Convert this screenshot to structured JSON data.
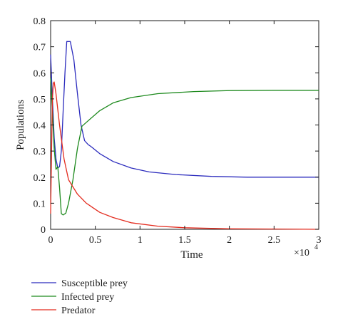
{
  "chart_data": {
    "type": "line",
    "title": "",
    "xlabel": "Time",
    "ylabel": "Populations",
    "x_multiplier_label": "×10",
    "x_multiplier_exponent": "4",
    "xlim": [
      0,
      3
    ],
    "ylim": [
      0,
      0.8
    ],
    "x_ticks": [
      0,
      0.5,
      1,
      1.5,
      2,
      2.5,
      3
    ],
    "x_tick_labels": [
      "0",
      "0.5",
      "1",
      "1.5",
      "2",
      "2.5",
      "3"
    ],
    "y_ticks": [
      0,
      0.1,
      0.2,
      0.3,
      0.4,
      0.5,
      0.6,
      0.7,
      0.8
    ],
    "y_tick_labels": [
      "0",
      "0.1",
      "0.2",
      "0.3",
      "0.4",
      "0.5",
      "0.6",
      "0.7",
      "0.8"
    ],
    "grid": false,
    "legend_placement": "below",
    "series": [
      {
        "name": "Susceptible prey",
        "color": "#2b2bbd",
        "points": [
          [
            0,
            0.67
          ],
          [
            0.02,
            0.5
          ],
          [
            0.04,
            0.35
          ],
          [
            0.06,
            0.27
          ],
          [
            0.08,
            0.235
          ],
          [
            0.1,
            0.24
          ],
          [
            0.12,
            0.3
          ],
          [
            0.14,
            0.45
          ],
          [
            0.16,
            0.6
          ],
          [
            0.18,
            0.72
          ],
          [
            0.22,
            0.72
          ],
          [
            0.26,
            0.65
          ],
          [
            0.3,
            0.52
          ],
          [
            0.34,
            0.4
          ],
          [
            0.38,
            0.34
          ],
          [
            0.42,
            0.325
          ],
          [
            0.46,
            0.315
          ],
          [
            0.55,
            0.29
          ],
          [
            0.7,
            0.26
          ],
          [
            0.9,
            0.235
          ],
          [
            1.1,
            0.22
          ],
          [
            1.4,
            0.21
          ],
          [
            1.8,
            0.203
          ],
          [
            2.2,
            0.2
          ],
          [
            2.6,
            0.2
          ],
          [
            3.0,
            0.2
          ]
        ]
      },
      {
        "name": "Infected prey",
        "color": "#1e8a1e",
        "points": [
          [
            0,
            0.58
          ],
          [
            0.02,
            0.45
          ],
          [
            0.04,
            0.31
          ],
          [
            0.06,
            0.23
          ],
          [
            0.08,
            0.24
          ],
          [
            0.1,
            0.16
          ],
          [
            0.12,
            0.06
          ],
          [
            0.14,
            0.055
          ],
          [
            0.17,
            0.062
          ],
          [
            0.2,
            0.1
          ],
          [
            0.25,
            0.19
          ],
          [
            0.3,
            0.31
          ],
          [
            0.35,
            0.395
          ],
          [
            0.4,
            0.41
          ],
          [
            0.45,
            0.425
          ],
          [
            0.55,
            0.455
          ],
          [
            0.7,
            0.485
          ],
          [
            0.9,
            0.505
          ],
          [
            1.2,
            0.52
          ],
          [
            1.6,
            0.528
          ],
          [
            2.0,
            0.532
          ],
          [
            2.5,
            0.533
          ],
          [
            3.0,
            0.533
          ]
        ]
      },
      {
        "name": "Predator",
        "color": "#e32b1e",
        "points": [
          [
            0,
            0.06
          ],
          [
            0.01,
            0.3
          ],
          [
            0.02,
            0.5
          ],
          [
            0.03,
            0.56
          ],
          [
            0.04,
            0.565
          ],
          [
            0.06,
            0.52
          ],
          [
            0.1,
            0.4
          ],
          [
            0.15,
            0.27
          ],
          [
            0.2,
            0.19
          ],
          [
            0.3,
            0.135
          ],
          [
            0.4,
            0.1
          ],
          [
            0.55,
            0.065
          ],
          [
            0.7,
            0.045
          ],
          [
            0.9,
            0.025
          ],
          [
            1.2,
            0.012
          ],
          [
            1.5,
            0.006
          ],
          [
            2.0,
            0.002
          ],
          [
            2.5,
            0.001
          ],
          [
            3.0,
            0.0
          ]
        ]
      }
    ]
  }
}
